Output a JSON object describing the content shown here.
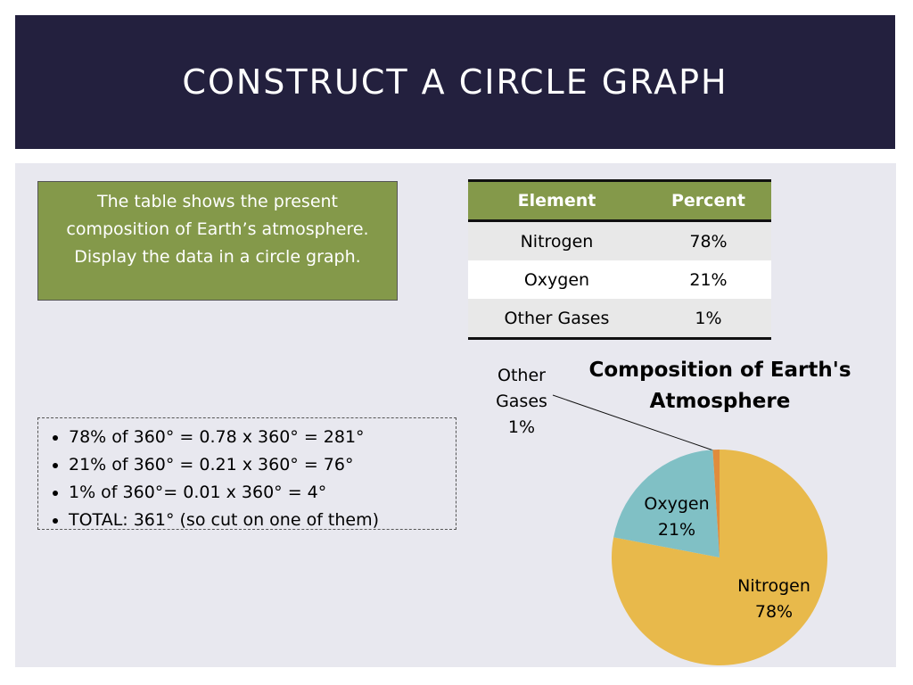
{
  "header": {
    "title": "CONSTRUCT A CIRCLE GRAPH"
  },
  "intro": "The table shows the present composition of Earth’s atmosphere.  Display the data in a circle graph.",
  "table": {
    "header": [
      "Element",
      "Percent"
    ],
    "rows": [
      [
        "Nitrogen",
        "78%"
      ],
      [
        "Oxygen",
        "21%"
      ],
      [
        "Other Gases",
        "1%"
      ]
    ]
  },
  "calculations": [
    "78% of 360° = 0.78 x 360° = 281°",
    "21% of 360° = 0.21 x 360° = 76°",
    "1% of 360°= 0.01 x 360° = 4°",
    "TOTAL: 361° (so cut on one of them)"
  ],
  "chart_data": {
    "type": "pie",
    "title": "Composition of Earth's Atmosphere",
    "categories": [
      "Nitrogen",
      "Oxygen",
      "Other Gases"
    ],
    "values": [
      78,
      21,
      1
    ],
    "value_labels": [
      "78%",
      "21%",
      "1%"
    ],
    "colors": [
      "#e8b94b",
      "#80c0c5",
      "#e08c3c"
    ]
  }
}
